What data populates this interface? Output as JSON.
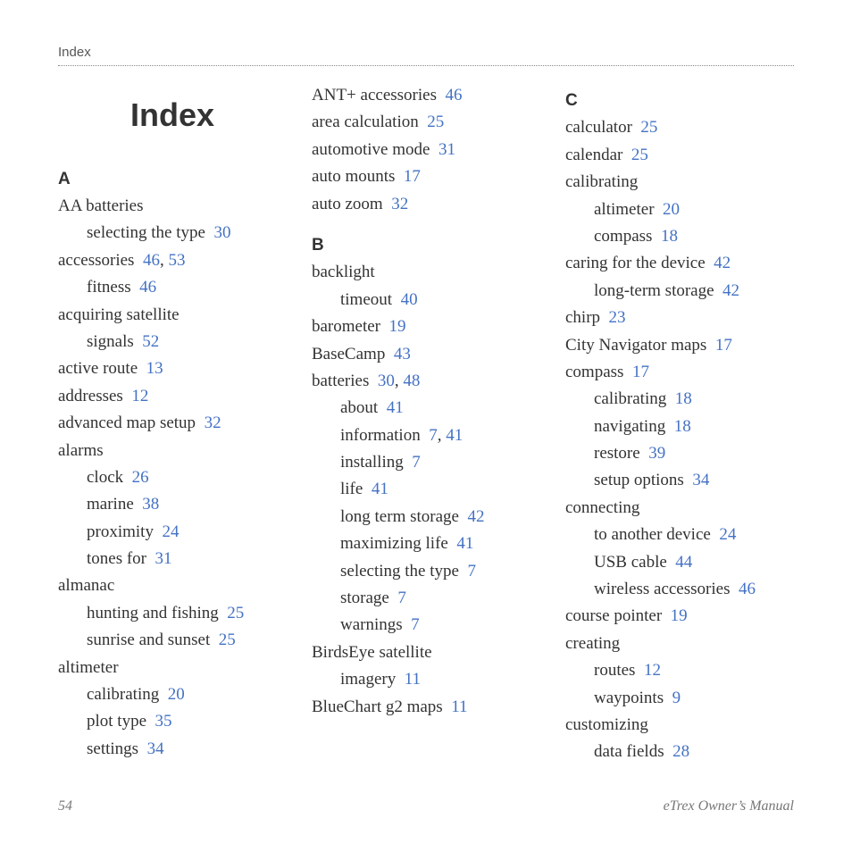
{
  "header": {
    "running": "Index"
  },
  "title": "Index",
  "colors": {
    "link": "#4472c4",
    "text": "#333333",
    "muted": "#777777"
  },
  "columns": [
    {
      "items": [
        {
          "type": "letter",
          "text": "A"
        },
        {
          "type": "entry",
          "text": "AA batteries"
        },
        {
          "type": "sub",
          "text": "selecting the type",
          "pages": [
            "30"
          ]
        },
        {
          "type": "entry",
          "text": "accessories",
          "pages": [
            "46",
            "53"
          ]
        },
        {
          "type": "sub",
          "text": "fitness",
          "pages": [
            "46"
          ]
        },
        {
          "type": "entry",
          "text": "acquiring satellite"
        },
        {
          "type": "sub",
          "text": "signals",
          "pages": [
            "52"
          ]
        },
        {
          "type": "entry",
          "text": "active route",
          "pages": [
            "13"
          ]
        },
        {
          "type": "entry",
          "text": "addresses",
          "pages": [
            "12"
          ]
        },
        {
          "type": "entry",
          "text": "advanced map setup",
          "pages": [
            "32"
          ]
        },
        {
          "type": "entry",
          "text": "alarms"
        },
        {
          "type": "sub",
          "text": "clock",
          "pages": [
            "26"
          ]
        },
        {
          "type": "sub",
          "text": "marine",
          "pages": [
            "38"
          ]
        },
        {
          "type": "sub",
          "text": "proximity",
          "pages": [
            "24"
          ]
        },
        {
          "type": "sub",
          "text": "tones for",
          "pages": [
            "31"
          ]
        },
        {
          "type": "entry",
          "text": "almanac"
        },
        {
          "type": "sub",
          "text": "hunting and fishing",
          "pages": [
            "25"
          ]
        },
        {
          "type": "sub",
          "text": "sunrise and sunset",
          "pages": [
            "25"
          ]
        },
        {
          "type": "entry",
          "text": "altimeter"
        },
        {
          "type": "sub",
          "text": "calibrating",
          "pages": [
            "20"
          ]
        },
        {
          "type": "sub",
          "text": "plot type",
          "pages": [
            "35"
          ]
        },
        {
          "type": "sub",
          "text": "settings",
          "pages": [
            "34"
          ]
        }
      ]
    },
    {
      "items": [
        {
          "type": "entry",
          "text": "ANT+ accessories",
          "pages": [
            "46"
          ]
        },
        {
          "type": "entry",
          "text": "area calculation",
          "pages": [
            "25"
          ]
        },
        {
          "type": "entry",
          "text": "automotive mode",
          "pages": [
            "31"
          ]
        },
        {
          "type": "entry",
          "text": "auto mounts",
          "pages": [
            "17"
          ]
        },
        {
          "type": "entry",
          "text": "auto zoom",
          "pages": [
            "32"
          ]
        },
        {
          "type": "spacer"
        },
        {
          "type": "letter",
          "text": "B"
        },
        {
          "type": "entry",
          "text": "backlight"
        },
        {
          "type": "sub",
          "text": "timeout",
          "pages": [
            "40"
          ]
        },
        {
          "type": "entry",
          "text": "barometer",
          "pages": [
            "19"
          ]
        },
        {
          "type": "entry",
          "text": "BaseCamp",
          "pages": [
            "43"
          ]
        },
        {
          "type": "entry",
          "text": "batteries",
          "pages": [
            "30",
            "48"
          ]
        },
        {
          "type": "sub",
          "text": "about",
          "pages": [
            "41"
          ]
        },
        {
          "type": "sub",
          "text": "information",
          "pages": [
            "7",
            "41"
          ]
        },
        {
          "type": "sub",
          "text": "installing",
          "pages": [
            "7"
          ]
        },
        {
          "type": "sub",
          "text": "life",
          "pages": [
            "41"
          ]
        },
        {
          "type": "sub",
          "text": "long term storage",
          "pages": [
            "42"
          ]
        },
        {
          "type": "sub",
          "text": "maximizing life",
          "pages": [
            "41"
          ]
        },
        {
          "type": "sub",
          "text": "selecting the type",
          "pages": [
            "7"
          ]
        },
        {
          "type": "sub",
          "text": "storage",
          "pages": [
            "7"
          ]
        },
        {
          "type": "sub",
          "text": "warnings",
          "pages": [
            "7"
          ]
        },
        {
          "type": "entry",
          "text": "BirdsEye satellite"
        },
        {
          "type": "sub",
          "text": "imagery",
          "pages": [
            "11"
          ]
        },
        {
          "type": "entry",
          "text": "BlueChart g2 maps",
          "pages": [
            "11"
          ]
        }
      ]
    },
    {
      "items": [
        {
          "type": "letter",
          "text": "C"
        },
        {
          "type": "entry",
          "text": "calculator",
          "pages": [
            "25"
          ]
        },
        {
          "type": "entry",
          "text": "calendar",
          "pages": [
            "25"
          ]
        },
        {
          "type": "entry",
          "text": "calibrating"
        },
        {
          "type": "sub",
          "text": "altimeter",
          "pages": [
            "20"
          ]
        },
        {
          "type": "sub",
          "text": "compass",
          "pages": [
            "18"
          ]
        },
        {
          "type": "entry",
          "text": "caring for the device",
          "pages": [
            "42"
          ]
        },
        {
          "type": "sub",
          "text": "long-term storage",
          "pages": [
            "42"
          ]
        },
        {
          "type": "entry",
          "text": "chirp",
          "pages": [
            "23"
          ]
        },
        {
          "type": "entry",
          "text": "City Navigator maps",
          "pages": [
            "17"
          ]
        },
        {
          "type": "entry",
          "text": "compass",
          "pages": [
            "17"
          ]
        },
        {
          "type": "sub",
          "text": "calibrating",
          "pages": [
            "18"
          ]
        },
        {
          "type": "sub",
          "text": "navigating",
          "pages": [
            "18"
          ]
        },
        {
          "type": "sub",
          "text": "restore",
          "pages": [
            "39"
          ]
        },
        {
          "type": "sub",
          "text": "setup options",
          "pages": [
            "34"
          ]
        },
        {
          "type": "entry",
          "text": "connecting"
        },
        {
          "type": "sub",
          "text": "to another device",
          "pages": [
            "24"
          ]
        },
        {
          "type": "sub",
          "text": "USB cable",
          "pages": [
            "44"
          ]
        },
        {
          "type": "sub",
          "text": "wireless accessories",
          "pages": [
            "46"
          ]
        },
        {
          "type": "entry",
          "text": "course pointer",
          "pages": [
            "19"
          ]
        },
        {
          "type": "entry",
          "text": "creating"
        },
        {
          "type": "sub",
          "text": "routes",
          "pages": [
            "12"
          ]
        },
        {
          "type": "sub",
          "text": "waypoints",
          "pages": [
            "9"
          ]
        },
        {
          "type": "entry",
          "text": "customizing"
        },
        {
          "type": "sub",
          "text": "data fields",
          "pages": [
            "28"
          ]
        }
      ]
    }
  ],
  "footer": {
    "pageNumber": "54",
    "bookTitle": "eTrex Owner’s Manual"
  }
}
